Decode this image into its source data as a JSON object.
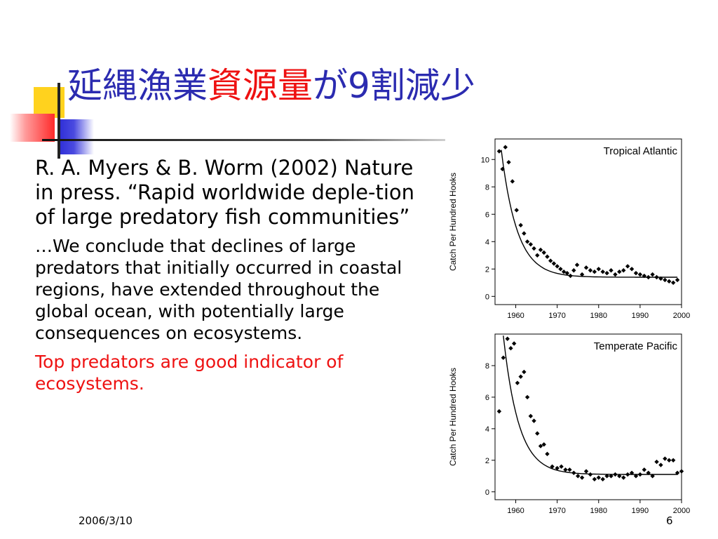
{
  "slide": {
    "title_prefix": "延縄漁業",
    "title_highlight": "資源量",
    "title_suffix": "が9割減少",
    "reference": "R. A. Myers & B. Worm (2002) Nature in press. “Rapid worldwide deple-tion of large predatory fish communities”",
    "quote": "…We conclude that declines of large predators that initially occurred in coastal regions, have extended throughout the global ocean, with potentially large consequences on ecosystems.",
    "note": "Top predators are good indicator of ecosystems.",
    "footer_date": "2006/3/10",
    "footer_page": "6"
  },
  "colors": {
    "title": "#2b2bb0",
    "highlight": "#ee1111",
    "note": "#ee1111",
    "text": "#000000"
  },
  "chart_data": [
    {
      "type": "scatter",
      "title": "Tropical Atlantic",
      "xlabel": "",
      "ylabel": "Catch Per Hundred Hooks",
      "xlim": [
        1955,
        2000
      ],
      "ylim": [
        -0.6,
        11.5
      ],
      "xticks": [
        1960,
        1970,
        1980,
        1990,
        2000
      ],
      "yticks": [
        0,
        2,
        4,
        6,
        8,
        10
      ],
      "grid": false,
      "legend": "none",
      "series": [
        {
          "x": [
            1956,
            1956.8,
            1957.5,
            1958.3,
            1959.2,
            1960.2,
            1961.2,
            1962,
            1962.8,
            1963.6,
            1964.4,
            1965.2,
            1966,
            1966.8,
            1967.6,
            1968.4,
            1969.2,
            1970,
            1970.8,
            1971.6,
            1972.4,
            1973.2,
            1974,
            1974.8,
            1976,
            1977,
            1978,
            1979,
            1980,
            1981,
            1982,
            1983,
            1984,
            1985,
            1986,
            1987,
            1988,
            1989,
            1990,
            1991,
            1992,
            1993,
            1994,
            1995,
            1996,
            1997,
            1998,
            1999
          ],
          "values": [
            10.6,
            9.3,
            10.9,
            9.8,
            8.4,
            6.3,
            5.2,
            4.6,
            4.0,
            3.8,
            3.5,
            3.0,
            3.4,
            3.2,
            2.9,
            2.6,
            2.4,
            2.2,
            2.0,
            1.8,
            1.7,
            1.5,
            1.9,
            2.3,
            1.6,
            2.1,
            1.9,
            1.8,
            2.0,
            1.8,
            1.7,
            1.9,
            1.6,
            1.8,
            1.9,
            2.2,
            2.0,
            1.7,
            1.6,
            1.5,
            1.4,
            1.6,
            1.4,
            1.3,
            1.2,
            1.1,
            1.0,
            1.2
          ]
        }
      ],
      "fit": {
        "asymptote": 1.4,
        "amplitude": 9.3,
        "start_year": 1956.5,
        "rate": 0.26
      }
    },
    {
      "type": "scatter",
      "title": "Temperate Pacific",
      "xlabel": "",
      "ylabel": "Catch Per Hundred Hooks",
      "xlim": [
        1955,
        2000
      ],
      "ylim": [
        -0.5,
        10
      ],
      "xticks": [
        1960,
        1970,
        1980,
        1990,
        2000
      ],
      "yticks": [
        0,
        2,
        4,
        6,
        8
      ],
      "grid": false,
      "legend": "none",
      "series": [
        {
          "x": [
            1956,
            1957,
            1958,
            1958.8,
            1959.6,
            1960.4,
            1961.2,
            1962,
            1962.8,
            1963.6,
            1964.4,
            1965.2,
            1966,
            1966.8,
            1967.6,
            1968.8,
            1970,
            1971,
            1972,
            1973,
            1974,
            1975,
            1976,
            1977,
            1978,
            1979,
            1980,
            1981,
            1982,
            1983,
            1984,
            1985,
            1986,
            1987,
            1988,
            1989,
            1990,
            1991,
            1992,
            1993,
            1994,
            1995,
            1996,
            1997,
            1998,
            1999,
            2000
          ],
          "values": [
            5.1,
            8.5,
            9.7,
            9.1,
            9.4,
            6.9,
            7.3,
            7.6,
            6.0,
            4.8,
            4.5,
            3.7,
            2.9,
            3.0,
            2.4,
            1.6,
            1.5,
            1.6,
            1.4,
            1.4,
            1.2,
            1.0,
            0.9,
            1.3,
            1.1,
            0.8,
            0.9,
            0.8,
            1.0,
            1.0,
            1.1,
            1.0,
            0.9,
            1.1,
            1.2,
            1.0,
            1.1,
            1.4,
            1.2,
            1.0,
            1.9,
            1.7,
            2.1,
            2.0,
            2.0,
            1.2,
            1.3
          ]
        }
      ],
      "fit": {
        "asymptote": 1.1,
        "amplitude": 8.8,
        "start_year": 1957,
        "rate": 0.27
      }
    }
  ]
}
